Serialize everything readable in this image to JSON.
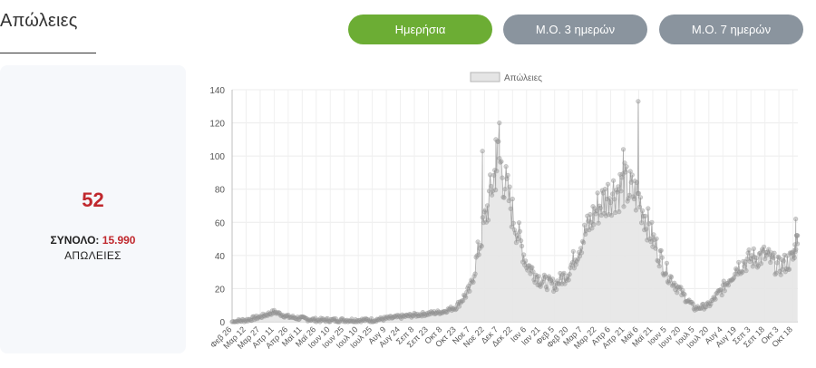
{
  "header": {
    "title": "Απώλειες",
    "tabs": [
      {
        "label": "Ημερήσια",
        "active": true
      },
      {
        "label": "Μ.Ο. 3 ημερών",
        "active": false
      },
      {
        "label": "Μ.Ο. 7 ημερών",
        "active": false
      }
    ]
  },
  "summary": {
    "value": "52",
    "total_label": "ΣΥΝΟΛΟ:",
    "total_value": "15.990",
    "unit": "ΑΠΩΛΕΙΕΣ"
  },
  "colors": {
    "active_tab": "#6cad34",
    "inactive_tab": "#8a949e",
    "accent_red": "#c0282d",
    "area_fill": "#e5e5e5",
    "line": "#a9a9a9",
    "point": "#9a9a9a"
  },
  "chart_data": {
    "type": "line",
    "legend": {
      "label": "Απώλειες",
      "position": "top"
    },
    "grid": true,
    "ylim": [
      0,
      140
    ],
    "yticks": [
      0,
      20,
      40,
      60,
      80,
      100,
      120,
      140
    ],
    "xticks": [
      "Φεβ 26",
      "Μαρ 12",
      "Μαρ 27",
      "Απρ 11",
      "Απρ 26",
      "Μαϊ 11",
      "Μαϊ 26",
      "Ιουν 10",
      "Ιουν 25",
      "Ιουλ 10",
      "Ιουλ 25",
      "Αυγ 9",
      "Αυγ 24",
      "Σεπ 8",
      "Σεπ 23",
      "Οκτ 8",
      "Οκτ 23",
      "Νοε 7",
      "Νοε 22",
      "Δεκ 7",
      "Δεκ 22",
      "Ιαν 6",
      "Ιαν 21",
      "Φεβ 5",
      "Φεβ 20",
      "Μαρ 7",
      "Μαρ 22",
      "Απρ 6",
      "Απρ 21",
      "Μαϊ 6",
      "Μαϊ 21",
      "Ιουν 5",
      "Ιουν 20",
      "Ιουλ 5",
      "Ιουλ 20",
      "Αυγ 4",
      "Αυγ 19",
      "Σεπ 3",
      "Σεπ 18",
      "Οκτ 3",
      "Οκτ 18"
    ],
    "series": [
      {
        "name": "Απώλειες",
        "keypoints": [
          [
            "Φεβ 26",
            0
          ],
          [
            "Μαρ 12",
            1
          ],
          [
            "Μαρ 27",
            3
          ],
          [
            "Απρ 11",
            6
          ],
          [
            "Απρ 26",
            3
          ],
          [
            "Μαϊ 11",
            2
          ],
          [
            "Μαϊ 26",
            1
          ],
          [
            "Ιουν 10",
            1
          ],
          [
            "Ιουν 25",
            1
          ],
          [
            "Ιουλ 10",
            1
          ],
          [
            "Ιουλ 25",
            1
          ],
          [
            "Αυγ 9",
            2
          ],
          [
            "Αυγ 24",
            3
          ],
          [
            "Σεπ 8",
            4
          ],
          [
            "Σεπ 23",
            5
          ],
          [
            "Οκτ 8",
            6
          ],
          [
            "Οκτ 23",
            9
          ],
          [
            "Νοε 7",
            20
          ],
          [
            "Νοε 22",
            60
          ],
          [
            "Δεκ 7",
            100
          ],
          [
            "Δεκ 22",
            65
          ],
          [
            "Ιαν 6",
            35
          ],
          [
            "Ιαν 21",
            25
          ],
          [
            "Φεβ 5",
            22
          ],
          [
            "Φεβ 20",
            30
          ],
          [
            "Μαρ 7",
            50
          ],
          [
            "Μαρ 22",
            68
          ],
          [
            "Απρ 6",
            78
          ],
          [
            "Απρ 21",
            82
          ],
          [
            "Μαϊ 6",
            75
          ],
          [
            "Μαϊ 21",
            50
          ],
          [
            "Ιουν 5",
            30
          ],
          [
            "Ιουν 20",
            18
          ],
          [
            "Ιουλ 5",
            8
          ],
          [
            "Ιουλ 20",
            10
          ],
          [
            "Αυγ 4",
            20
          ],
          [
            "Αυγ 19",
            33
          ],
          [
            "Σεπ 3",
            38
          ],
          [
            "Σεπ 18",
            40
          ],
          [
            "Οκτ 3",
            33
          ],
          [
            "Οκτ 18",
            38
          ]
        ],
        "spikes": [
          [
            "Νοε 22",
            103
          ],
          [
            "Δεκ 7",
            120
          ],
          [
            "Δεκ 7",
            110
          ],
          [
            "Απρ 21",
            104
          ],
          [
            "Μαϊ 6",
            133
          ],
          [
            "Οκτ 18",
            62
          ]
        ],
        "end_value": 52
      }
    ]
  }
}
